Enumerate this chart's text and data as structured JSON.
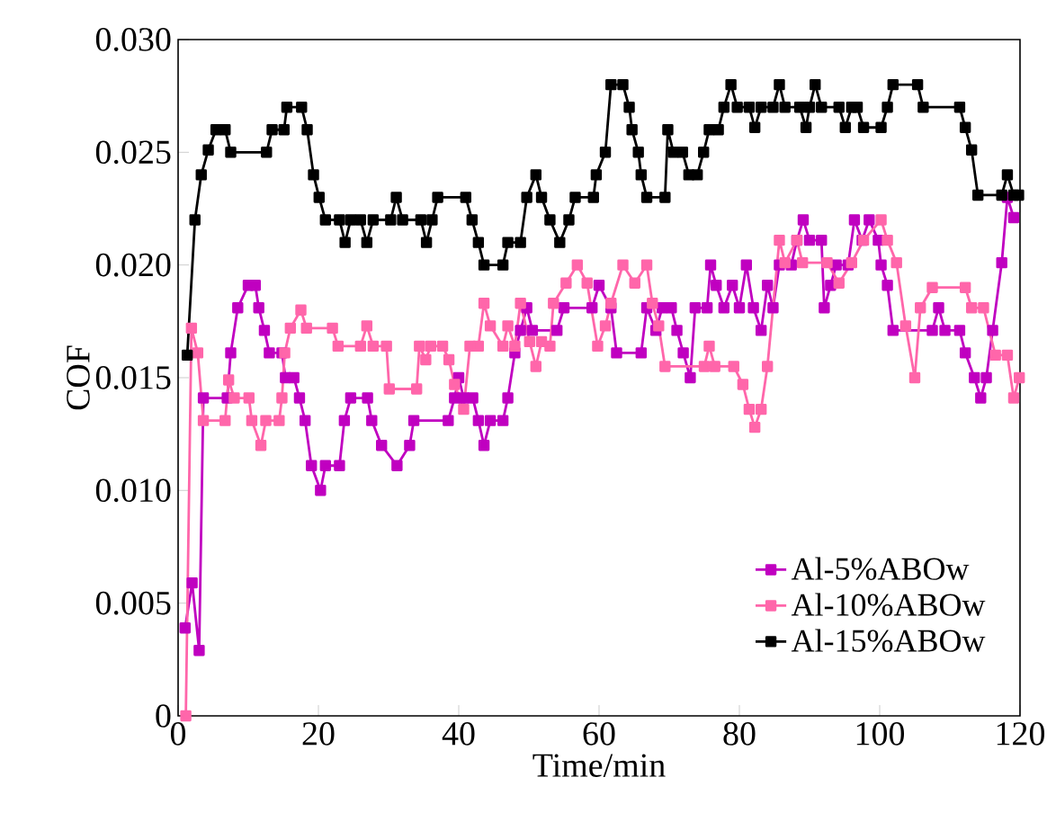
{
  "chart_data": {
    "type": "line",
    "xlabel": "Time/min",
    "ylabel": "COF",
    "xlim": [
      0,
      120
    ],
    "ylim": [
      0,
      0.03
    ],
    "xticks": [
      0,
      20,
      40,
      60,
      80,
      100,
      120
    ],
    "yticks": [
      0,
      0.005,
      {
        "value": 0.01,
        "label": "0.010"
      },
      0.015,
      {
        "value": 0.02,
        "label": "0.020"
      },
      0.025,
      {
        "value": 0.03,
        "label": "0.030"
      }
    ],
    "marker": "square",
    "legend": "bottom right",
    "grid": false,
    "series": [
      {
        "name": "Al-5%ABOw",
        "color": "#c000c0",
        "x": [
          1,
          2,
          3,
          3.6,
          7,
          7.5,
          8.5,
          10,
          11,
          11.5,
          12.3,
          13,
          14.8,
          15.3,
          16.5,
          17.3,
          18.1,
          19,
          20.3,
          21,
          23,
          23.7,
          24.6,
          27,
          27.6,
          29,
          31.2,
          33,
          33.6,
          38.5,
          39.4,
          40,
          40.7,
          42,
          42.8,
          43.6,
          44.5,
          46.3,
          47,
          48,
          48.8,
          49.7,
          50.5,
          54,
          55,
          59,
          60,
          61.7,
          62.5,
          66,
          66.8,
          68.1,
          69,
          70.3,
          71.1,
          72,
          73,
          73.7,
          75.4,
          75.9,
          76.7,
          77.8,
          79,
          80,
          81,
          82,
          83.1,
          84,
          84.8,
          85.7,
          87.4,
          88.2,
          89.1,
          90,
          91.7,
          92.1,
          93,
          93.8,
          95.5,
          96.4,
          97.5,
          98.5,
          99.8,
          100.2,
          101.1,
          101.9,
          107.5,
          108.4,
          109.3,
          111.4,
          112.2,
          113.5,
          114.4,
          115.2,
          116.1,
          117.4,
          118.2,
          119.1
        ],
        "values": [
          0.0039,
          0.0059,
          0.0029,
          0.0141,
          0.0141,
          0.0161,
          0.0181,
          0.0191,
          0.0191,
          0.0181,
          0.0171,
          0.0161,
          0.0161,
          0.015,
          0.015,
          0.0141,
          0.0131,
          0.0111,
          0.01,
          0.0111,
          0.0111,
          0.0131,
          0.0141,
          0.0141,
          0.0131,
          0.012,
          0.0111,
          0.012,
          0.0131,
          0.0131,
          0.0141,
          0.015,
          0.0141,
          0.0141,
          0.0131,
          0.012,
          0.0131,
          0.0131,
          0.0141,
          0.0161,
          0.0171,
          0.0181,
          0.0171,
          0.0171,
          0.0181,
          0.0181,
          0.0191,
          0.0181,
          0.0161,
          0.0161,
          0.0181,
          0.0171,
          0.0181,
          0.0181,
          0.0171,
          0.0161,
          0.015,
          0.0181,
          0.0181,
          0.02,
          0.0191,
          0.0181,
          0.0191,
          0.0181,
          0.02,
          0.0181,
          0.0171,
          0.0191,
          0.0181,
          0.02,
          0.02,
          0.0211,
          0.022,
          0.0211,
          0.0211,
          0.0181,
          0.0191,
          0.02,
          0.02,
          0.022,
          0.0211,
          0.022,
          0.0211,
          0.02,
          0.0191,
          0.0171,
          0.0171,
          0.0181,
          0.0171,
          0.0171,
          0.0161,
          0.015,
          0.0141,
          0.015,
          0.0171,
          0.0201,
          0.023,
          0.0221
        ]
      },
      {
        "name": "Al-10%ABOw",
        "color": "#ff66aa",
        "x": [
          1.1,
          1.9,
          2.8,
          3.6,
          6.7,
          7.2,
          8,
          10.1,
          10.5,
          11.8,
          12.5,
          14.4,
          14.8,
          15.2,
          16,
          17.5,
          18.3,
          22,
          22.8,
          26,
          26.9,
          27.8,
          29.7,
          30.1,
          34,
          34.4,
          35.3,
          36,
          37.7,
          38.6,
          39.4,
          40.7,
          41.6,
          42.8,
          43.6,
          44.5,
          46.3,
          47,
          48,
          48.8,
          50.1,
          51,
          51.8,
          53,
          53.5,
          55.3,
          56.9,
          58.3,
          59.8,
          60.9,
          61.7,
          63.4,
          65.1,
          66.8,
          67.6,
          68.5,
          69.4,
          75,
          75.7,
          76.5,
          79.2,
          80.5,
          81.4,
          82.2,
          83.1,
          84,
          85.7,
          86.5,
          88.2,
          89,
          92.5,
          94.2,
          96,
          97.7,
          100.2,
          101.1,
          102.4,
          103.7,
          105,
          105.8,
          107.5,
          112.2,
          113.1,
          114.8,
          116.5,
          118.2,
          119.1,
          119.9
        ],
        "values": [
          0.0,
          0.0172,
          0.0161,
          0.0131,
          0.0131,
          0.0149,
          0.0141,
          0.0141,
          0.0131,
          0.012,
          0.0131,
          0.0131,
          0.0141,
          0.0161,
          0.0172,
          0.018,
          0.0172,
          0.0172,
          0.0164,
          0.0164,
          0.0173,
          0.0164,
          0.0164,
          0.0145,
          0.0145,
          0.0164,
          0.0158,
          0.0164,
          0.0164,
          0.0158,
          0.0147,
          0.0136,
          0.0164,
          0.0164,
          0.0183,
          0.0173,
          0.0164,
          0.0173,
          0.0164,
          0.0183,
          0.0166,
          0.0155,
          0.0166,
          0.0164,
          0.0183,
          0.0192,
          0.02,
          0.0192,
          0.0164,
          0.0173,
          0.0183,
          0.02,
          0.0192,
          0.02,
          0.0183,
          0.0173,
          0.0155,
          0.0155,
          0.0164,
          0.0155,
          0.0155,
          0.0147,
          0.0136,
          0.0128,
          0.0136,
          0.0155,
          0.0211,
          0.0201,
          0.0211,
          0.0201,
          0.0201,
          0.0192,
          0.0201,
          0.0211,
          0.022,
          0.0211,
          0.0201,
          0.0173,
          0.015,
          0.0181,
          0.019,
          0.019,
          0.0181,
          0.0181,
          0.016,
          0.016,
          0.0141,
          0.015
        ]
      },
      {
        "name": "Al-15%ABOw",
        "color": "#000000",
        "x": [
          1.3,
          2.4,
          3.3,
          4.3,
          5.4,
          6.7,
          7.5,
          12.6,
          13.4,
          15.1,
          15.5,
          17.6,
          18.4,
          19.3,
          20.1,
          21,
          23,
          23.8,
          24.6,
          26,
          26.9,
          27.8,
          30.3,
          31.1,
          32,
          34.6,
          35.4,
          36.2,
          37,
          41,
          41.9,
          42.8,
          43.6,
          46.3,
          47,
          48.8,
          49.7,
          51,
          51.8,
          53,
          54.4,
          55.7,
          56.6,
          59.2,
          59.6,
          60.9,
          61.7,
          63.4,
          64.3,
          64.7,
          65.6,
          66,
          66.8,
          69.4,
          69.8,
          70.6,
          71.9,
          72.8,
          74,
          74.9,
          75.7,
          77,
          77.8,
          78.8,
          79.7,
          81.4,
          82.2,
          83.1,
          84.8,
          85.7,
          86.5,
          88.6,
          89.5,
          90,
          90.8,
          91.7,
          94.2,
          95.1,
          96,
          96.8,
          97.7,
          100.2,
          101.1,
          101.9,
          105.4,
          106.2,
          111.4,
          112.2,
          113.1,
          114,
          117.4,
          118.2,
          119.1,
          119.8
        ],
        "values": [
          0.016,
          0.022,
          0.024,
          0.0251,
          0.026,
          0.026,
          0.025,
          0.025,
          0.026,
          0.026,
          0.027,
          0.027,
          0.026,
          0.024,
          0.023,
          0.022,
          0.022,
          0.021,
          0.022,
          0.022,
          0.021,
          0.022,
          0.022,
          0.023,
          0.022,
          0.022,
          0.021,
          0.022,
          0.023,
          0.023,
          0.022,
          0.021,
          0.02,
          0.02,
          0.021,
          0.021,
          0.023,
          0.024,
          0.023,
          0.022,
          0.021,
          0.022,
          0.023,
          0.023,
          0.024,
          0.025,
          0.028,
          0.028,
          0.027,
          0.026,
          0.025,
          0.024,
          0.023,
          0.023,
          0.026,
          0.025,
          0.025,
          0.024,
          0.024,
          0.025,
          0.026,
          0.026,
          0.027,
          0.028,
          0.027,
          0.027,
          0.0261,
          0.027,
          0.027,
          0.028,
          0.027,
          0.027,
          0.0261,
          0.027,
          0.028,
          0.027,
          0.027,
          0.0261,
          0.027,
          0.027,
          0.0261,
          0.0261,
          0.027,
          0.028,
          0.028,
          0.027,
          0.027,
          0.0261,
          0.0251,
          0.0231,
          0.0231,
          0.024,
          0.0231,
          0.0231
        ]
      }
    ]
  }
}
